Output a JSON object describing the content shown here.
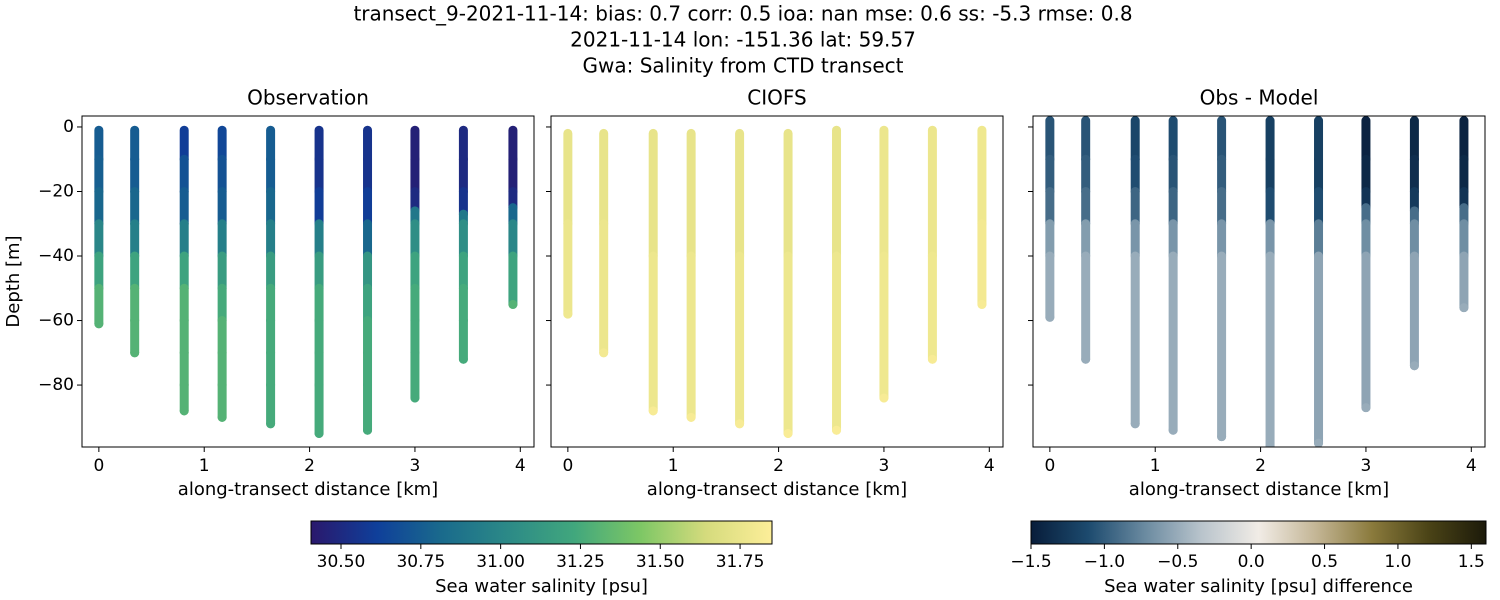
{
  "suptitle": [
    "transect_9-2021-11-14: bias: 0.7  corr: 0.5  ioa: nan  mse: 0.6  ss: -5.3  rmse: 0.8",
    "2021-11-14 lon: -151.36 lat: 59.57",
    "Gwa: Salinity from CTD transect"
  ],
  "chart_data": [
    {
      "type": "scatter",
      "title": "Observation",
      "xlabel": "along-transect distance [km]",
      "ylabel": "Depth [m]",
      "xlim": [
        -0.16,
        4.13
      ],
      "ylim": [
        -99.2,
        3.4
      ],
      "xticks": [
        0,
        1,
        2,
        3,
        4
      ],
      "yticks": [
        {
          "value": 0,
          "label": "0"
        },
        {
          "value": -20,
          "label": "−20"
        },
        {
          "value": -40,
          "label": "−40"
        },
        {
          "value": -60,
          "label": "−60"
        },
        {
          "value": -80,
          "label": "−80"
        }
      ],
      "clim": [
        30.406,
        31.85
      ],
      "colormap": [
        "#2a186c",
        "#0f3f9a",
        "#1a6b8c",
        "#2c8a87",
        "#41a77d",
        "#7dc765",
        "#d5db7d",
        "#fdee99"
      ],
      "colorbar": {
        "label": "Sea water salinity [psu]",
        "ticks": [
          {
            "value": 30.5,
            "label": "30.50"
          },
          {
            "value": 30.75,
            "label": "30.75"
          },
          {
            "value": 31,
            "label": "31.00"
          },
          {
            "value": 31.25,
            "label": "31.25"
          },
          {
            "value": 31.5,
            "label": "31.50"
          },
          {
            "value": 31.75,
            "label": "31.75"
          }
        ]
      },
      "x": [
        0,
        0.34,
        0.81,
        1.17,
        1.63,
        2.09,
        2.55,
        3.0,
        3.46,
        3.93
      ],
      "casts": [
        {
          "depth": [
            -1,
            -10,
            -20,
            -30,
            -40,
            -50,
            -61
          ],
          "values": [
            30.75,
            30.76,
            30.8,
            31.0,
            31.2,
            31.3,
            31.3
          ]
        },
        {
          "depth": [
            -1,
            -10,
            -20,
            -30,
            -40,
            -50,
            -60,
            -70
          ],
          "values": [
            30.75,
            30.75,
            30.8,
            30.95,
            31.2,
            31.3,
            31.3,
            31.3
          ]
        },
        {
          "depth": [
            -1,
            -10,
            -20,
            -30,
            -40,
            -50,
            -60,
            -70,
            -80,
            -88
          ],
          "values": [
            30.6,
            30.7,
            30.75,
            30.95,
            31.2,
            31.3,
            31.3,
            31.3,
            31.3,
            31.3
          ]
        },
        {
          "depth": [
            -1,
            -10,
            -20,
            -30,
            -40,
            -50,
            -60,
            -70,
            -80,
            -90
          ],
          "values": [
            30.65,
            30.7,
            30.75,
            30.95,
            31.15,
            31.25,
            31.3,
            31.3,
            31.3,
            31.3
          ]
        },
        {
          "depth": [
            -1,
            -10,
            -20,
            -30,
            -40,
            -50,
            -60,
            -70,
            -80,
            -92
          ],
          "values": [
            30.75,
            30.75,
            30.8,
            30.95,
            31.15,
            31.25,
            31.25,
            31.25,
            31.25,
            31.25
          ]
        },
        {
          "depth": [
            -1,
            -10,
            -20,
            -30,
            -40,
            -50,
            -60,
            -70,
            -80,
            -95
          ],
          "values": [
            30.55,
            30.55,
            30.6,
            30.95,
            31.15,
            31.25,
            31.25,
            31.25,
            31.25,
            31.25
          ]
        },
        {
          "depth": [
            -1,
            -10,
            -20,
            -30,
            -40,
            -50,
            -60,
            -70,
            -80,
            -94
          ],
          "values": [
            30.55,
            30.55,
            30.6,
            30.8,
            31.1,
            31.2,
            31.25,
            31.25,
            31.25,
            31.25
          ]
        },
        {
          "depth": [
            -1,
            -10,
            -20,
            -26,
            -30,
            -40,
            -50,
            -60,
            -70,
            -84
          ],
          "values": [
            30.45,
            30.45,
            30.5,
            30.9,
            31.05,
            31.2,
            31.25,
            31.25,
            31.25,
            31.25
          ]
        },
        {
          "depth": [
            -1,
            -10,
            -20,
            -27,
            -30,
            -40,
            -50,
            -60,
            -72
          ],
          "values": [
            30.5,
            30.5,
            30.55,
            30.9,
            31.05,
            31.2,
            31.25,
            31.25,
            31.25
          ]
        },
        {
          "depth": [
            -1,
            -10,
            -20,
            -25,
            -30,
            -40,
            -55
          ],
          "values": [
            30.45,
            30.45,
            30.5,
            30.8,
            31.0,
            31.2,
            31.3
          ]
        }
      ]
    },
    {
      "type": "scatter",
      "title": "CIOFS",
      "xlabel": "along-transect distance [km]",
      "xlim": [
        -0.16,
        4.13
      ],
      "ylim": [
        -99.2,
        3.4
      ],
      "xticks": [
        0,
        1,
        2,
        3,
        4
      ],
      "yticks": [
        0,
        -20,
        -40,
        -60,
        -80
      ],
      "clim": [
        30.406,
        31.85
      ],
      "colormap": [
        "#2a186c",
        "#0f3f9a",
        "#1a6b8c",
        "#2c8a87",
        "#41a77d",
        "#7dc765",
        "#d5db7d",
        "#fdee99"
      ],
      "x": [
        0,
        0.34,
        0.81,
        1.17,
        1.63,
        2.09,
        2.55,
        3.0,
        3.46,
        3.93
      ],
      "casts": [
        {
          "depth": [
            -2,
            -30,
            -58
          ],
          "values": [
            31.74,
            31.76,
            31.78
          ]
        },
        {
          "depth": [
            -2,
            -30,
            -70
          ],
          "values": [
            31.74,
            31.76,
            31.8
          ]
        },
        {
          "depth": [
            -2,
            -40,
            -88
          ],
          "values": [
            31.74,
            31.77,
            31.82
          ]
        },
        {
          "depth": [
            -2,
            -40,
            -90
          ],
          "values": [
            31.74,
            31.77,
            31.82
          ]
        },
        {
          "depth": [
            -2,
            -40,
            -92
          ],
          "values": [
            31.74,
            31.77,
            31.82
          ]
        },
        {
          "depth": [
            -2,
            -40,
            -95
          ],
          "values": [
            31.74,
            31.77,
            31.83
          ]
        },
        {
          "depth": [
            -1,
            -40,
            -94
          ],
          "values": [
            31.74,
            31.77,
            31.83
          ]
        },
        {
          "depth": [
            -1,
            -40,
            -84
          ],
          "values": [
            31.76,
            31.78,
            31.82
          ]
        },
        {
          "depth": [
            -1,
            -40,
            -72
          ],
          "values": [
            31.76,
            31.78,
            31.82
          ]
        },
        {
          "depth": [
            -1,
            -30,
            -55
          ],
          "values": [
            31.78,
            31.8,
            31.82
          ]
        }
      ]
    },
    {
      "type": "scatter",
      "title": "Obs - Model",
      "xlabel": "along-transect distance [km]",
      "xlim": [
        -0.16,
        4.13
      ],
      "ylim": [
        -99.2,
        3.4
      ],
      "xticks": [
        0,
        1,
        2,
        3,
        4
      ],
      "yticks": [
        0,
        -20,
        -40,
        -60,
        -80
      ],
      "clim": [
        -1.5,
        1.6
      ],
      "colormap": [
        "#081d3a",
        "#1c4a6e",
        "#6a8aa0",
        "#b9c4cc",
        "#f1ece6",
        "#c4b696",
        "#8a7a3c",
        "#4a4316",
        "#1c1a0a"
      ],
      "colorbar": {
        "label": "Sea water salinity [psu] difference",
        "ticks": [
          {
            "value": -1.5,
            "label": "−1.5"
          },
          {
            "value": -1,
            "label": "−1.0"
          },
          {
            "value": -0.5,
            "label": "−0.5"
          },
          {
            "value": 0,
            "label": "0.0"
          },
          0.5,
          {
            "value": 1,
            "label": "1.0"
          },
          1.5
        ]
      },
      "x": [
        0,
        0.34,
        0.81,
        1.17,
        1.63,
        2.09,
        2.55,
        3.0,
        3.46,
        3.93
      ],
      "casts": [
        {
          "depth": [
            2,
            -10,
            -20,
            -30,
            -40,
            -59
          ],
          "values": [
            -1.05,
            -1.0,
            -0.9,
            -0.6,
            -0.5,
            -0.5
          ]
        },
        {
          "depth": [
            2,
            -10,
            -20,
            -30,
            -40,
            -72
          ],
          "values": [
            -1.05,
            -1.0,
            -0.9,
            -0.6,
            -0.5,
            -0.5
          ]
        },
        {
          "depth": [
            2,
            -10,
            -20,
            -30,
            -40,
            -92
          ],
          "values": [
            -1.15,
            -1.1,
            -0.95,
            -0.65,
            -0.5,
            -0.5
          ]
        },
        {
          "depth": [
            2,
            -10,
            -20,
            -30,
            -40,
            -94
          ],
          "values": [
            -1.1,
            -1.05,
            -0.95,
            -0.65,
            -0.5,
            -0.5
          ]
        },
        {
          "depth": [
            2,
            -10,
            -20,
            -30,
            -40,
            -96
          ],
          "values": [
            -1.05,
            -1.0,
            -0.9,
            -0.65,
            -0.5,
            -0.5
          ]
        },
        {
          "depth": [
            2,
            -10,
            -20,
            -30,
            -40,
            -99
          ],
          "values": [
            -1.2,
            -1.2,
            -1.1,
            -0.65,
            -0.5,
            -0.5
          ]
        },
        {
          "depth": [
            2,
            -10,
            -20,
            -30,
            -40,
            -98
          ],
          "values": [
            -1.2,
            -1.2,
            -1.1,
            -0.8,
            -0.55,
            -0.5
          ]
        },
        {
          "depth": [
            2,
            -10,
            -20,
            -25,
            -30,
            -40,
            -87
          ],
          "values": [
            -1.45,
            -1.4,
            -1.3,
            -0.9,
            -0.7,
            -0.55,
            -0.5
          ]
        },
        {
          "depth": [
            2,
            -10,
            -20,
            -26,
            -30,
            -40,
            -74
          ],
          "values": [
            -1.4,
            -1.35,
            -1.25,
            -0.9,
            -0.7,
            -0.55,
            -0.5
          ]
        },
        {
          "depth": [
            2,
            -10,
            -20,
            -25,
            -30,
            -40,
            -56
          ],
          "values": [
            -1.45,
            -1.4,
            -1.3,
            -0.9,
            -0.7,
            -0.55,
            -0.5
          ]
        }
      ]
    }
  ]
}
